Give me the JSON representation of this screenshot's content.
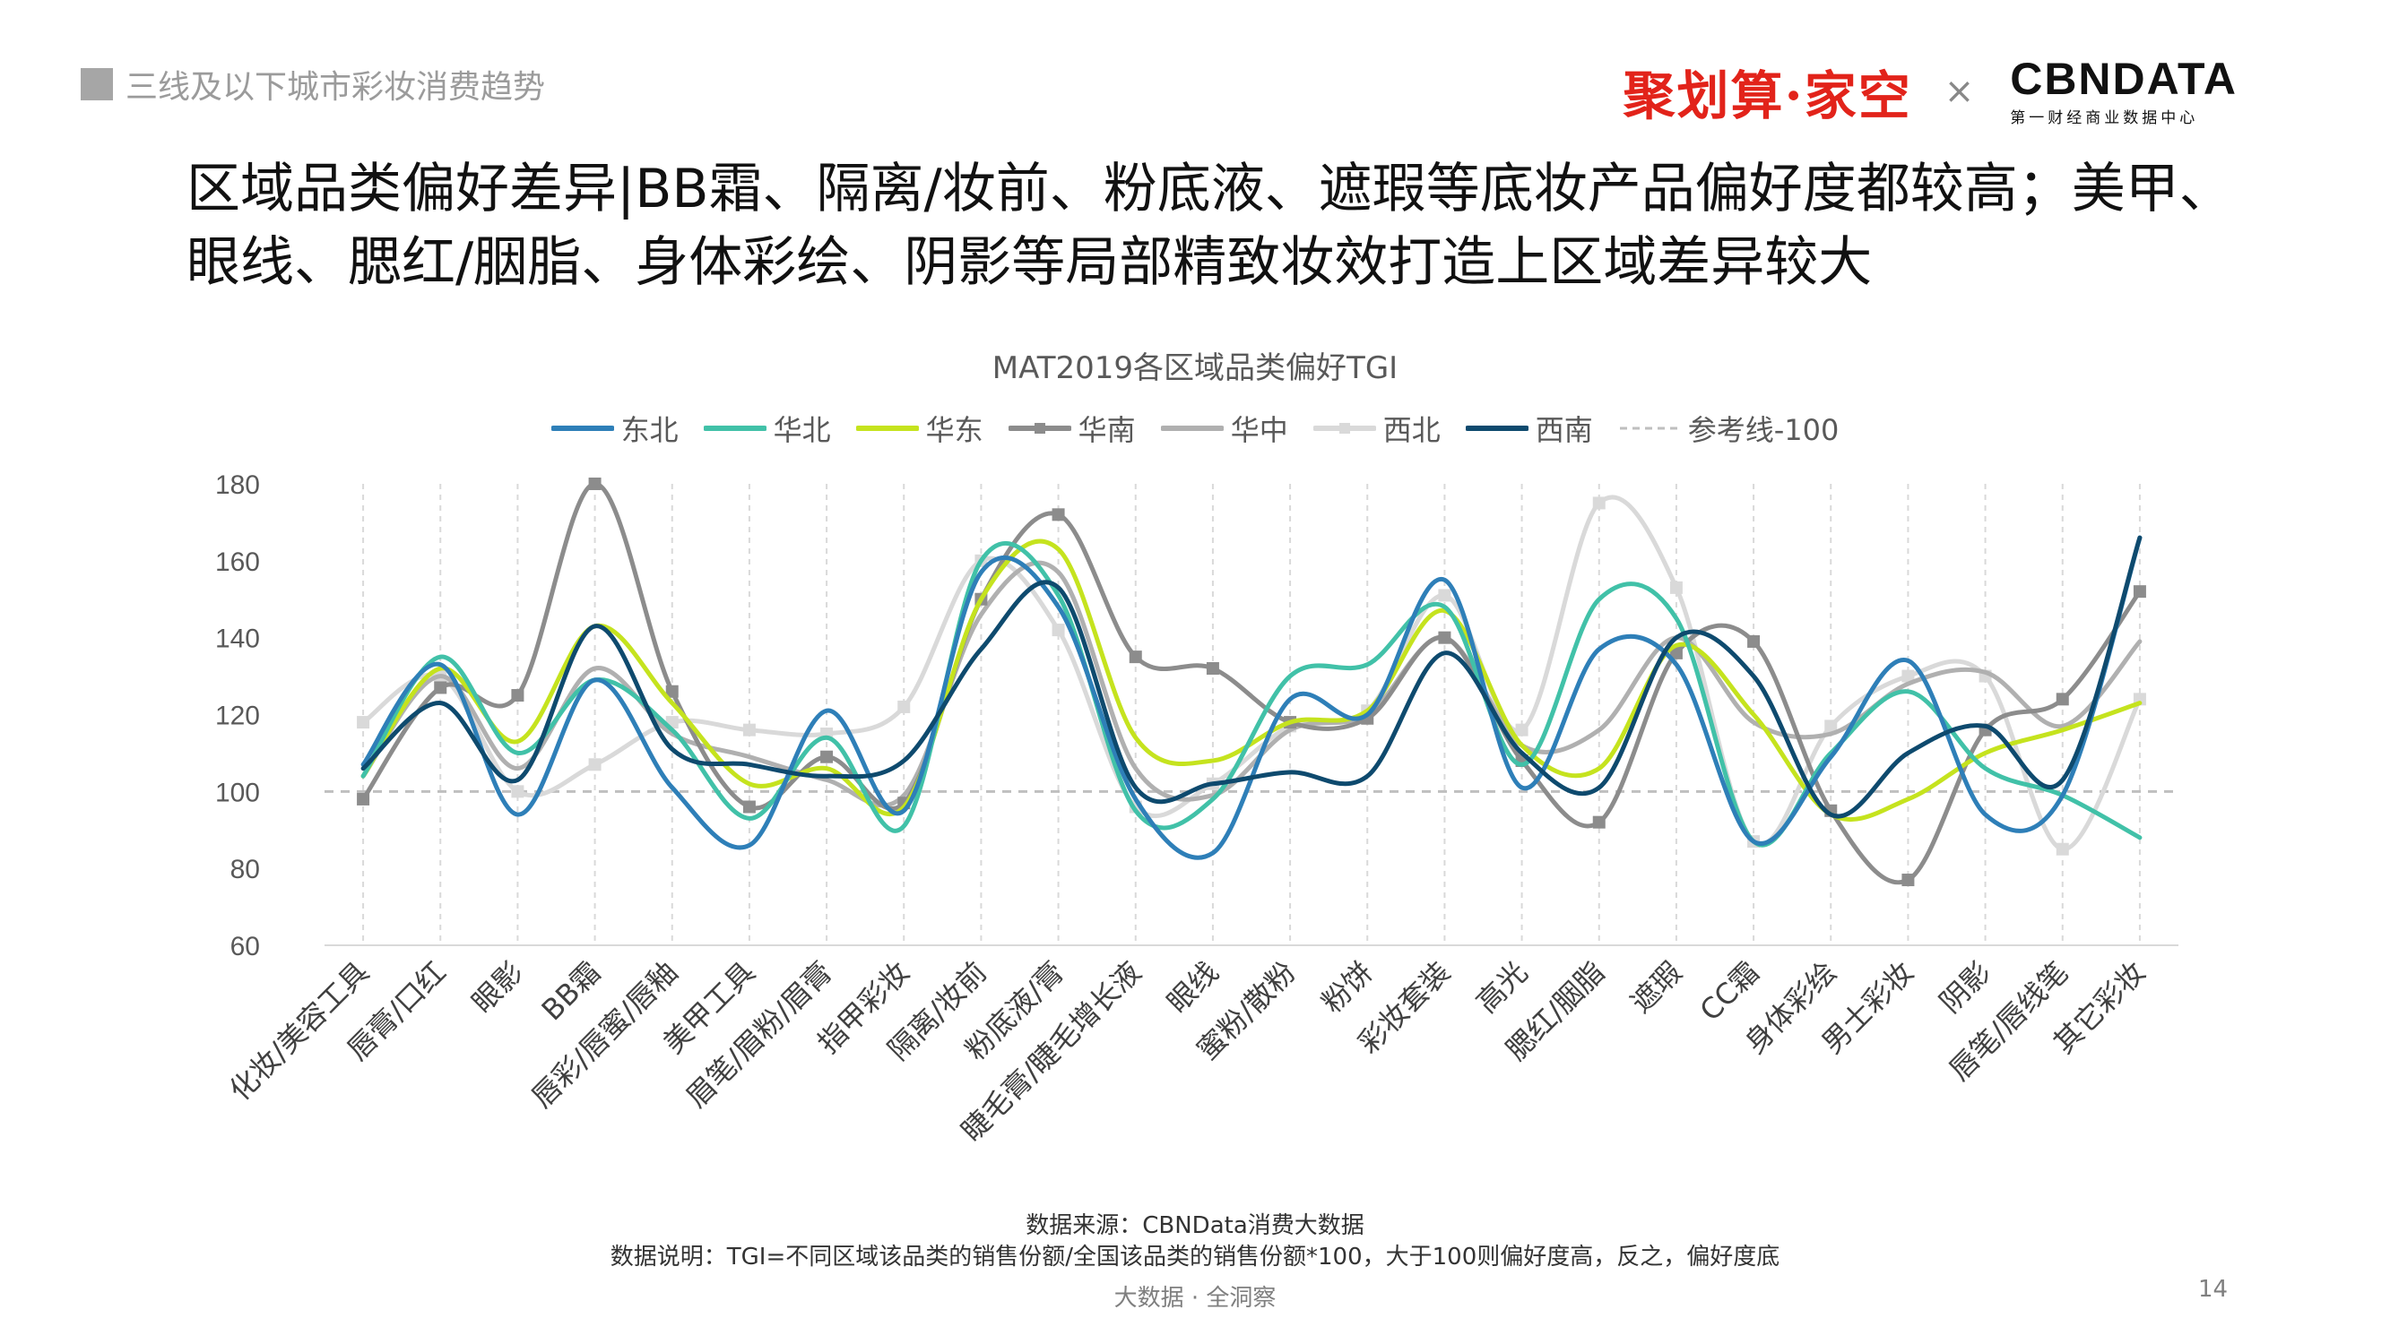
{
  "header": {
    "section": "三线及以下城市彩妆消费趋势"
  },
  "logos": {
    "jhs": "聚划算·家空",
    "cross": "×",
    "cbn_main": "CBNDATA",
    "cbn_sub": "第一财经商业数据中心"
  },
  "headline": "区域品类偏好差异|BB霜、隔离/妆前、粉底液、遮瑕等底妆产品偏好度都较高；美甲、眼线、腮红/胭脂、身体彩绘、阴影等局部精致妆效打造上区域差异较大",
  "footer": {
    "source": "数据来源：CBNData消费大数据",
    "note": "数据说明：TGI=不同区域该品类的销售份额/全国该品类的销售份额*100，大于100则偏好度高，反之，偏好度底",
    "center": "大数据 · 全洞察",
    "page": "14"
  },
  "chart_data": {
    "type": "line",
    "title": "MAT2019各区域品类偏好TGI",
    "categories": [
      "化妆/美容工具",
      "唇膏/口红",
      "眼影",
      "BB霜",
      "唇彩/唇蜜/唇釉",
      "美甲工具",
      "眉笔/眉粉/眉膏",
      "指甲彩妆",
      "隔离/妆前",
      "粉底液/膏",
      "睫毛膏/睫毛增长液",
      "眼线",
      "蜜粉/散粉",
      "粉饼",
      "彩妆套装",
      "高光",
      "腮红/胭脂",
      "遮瑕",
      "CC霜",
      "身体彩绘",
      "男士彩妆",
      "阴影",
      "唇笔/唇线笔",
      "其它彩妆"
    ],
    "ylim": [
      60,
      180
    ],
    "yticks": [
      60,
      80,
      100,
      120,
      140,
      160,
      180
    ],
    "reference": {
      "name": "参考线-100",
      "value": 100,
      "color": "#bfbfbf"
    },
    "series": [
      {
        "name": "东北",
        "color": "#2e7fb8",
        "marker": "none",
        "values": [
          107,
          133,
          94,
          129,
          101,
          86,
          121,
          95,
          157,
          148,
          98,
          84,
          124,
          120,
          155,
          101,
          137,
          133,
          87,
          109,
          134,
          94,
          99,
          166
        ]
      },
      {
        "name": "华北",
        "color": "#41c1a8",
        "marker": "none",
        "values": [
          104,
          135,
          110,
          129,
          116,
          93,
          114,
          91,
          160,
          151,
          95,
          98,
          130,
          133,
          148,
          107,
          150,
          145,
          87,
          110,
          126,
          106,
          99,
          88
        ]
      },
      {
        "name": "华东",
        "color": "#c5e31e",
        "marker": "none",
        "values": [
          104,
          132,
          113,
          143,
          123,
          102,
          106,
          96,
          150,
          163,
          114,
          108,
          118,
          121,
          147,
          112,
          106,
          138,
          120,
          94,
          98,
          110,
          116,
          123
        ]
      },
      {
        "name": "华南",
        "color": "#8c8c8c",
        "marker": "square",
        "values": [
          98,
          127,
          125,
          180,
          126,
          96,
          109,
          97,
          150,
          172,
          135,
          132,
          118,
          119,
          140,
          108,
          92,
          136,
          139,
          95,
          77,
          116,
          124,
          152
        ]
      },
      {
        "name": "华中",
        "color": "#b0b0b0",
        "marker": "none",
        "values": [
          104,
          130,
          106,
          132,
          115,
          109,
          103,
          99,
          146,
          157,
          106,
          99,
          116,
          120,
          140,
          112,
          116,
          140,
          118,
          115,
          128,
          131,
          117,
          139
        ]
      },
      {
        "name": "西北",
        "color": "#d9d9d9",
        "marker": "square",
        "values": [
          118,
          130,
          100,
          107,
          118,
          116,
          115,
          122,
          160,
          142,
          96,
          102,
          117,
          121,
          151,
          116,
          175,
          153,
          87,
          117,
          130,
          130,
          85,
          124
        ]
      },
      {
        "name": "西南",
        "color": "#0e4a6e",
        "marker": "none",
        "values": [
          106,
          123,
          103,
          143,
          111,
          107,
          104,
          108,
          137,
          153,
          101,
          102,
          105,
          104,
          136,
          110,
          101,
          140,
          130,
          94,
          110,
          117,
          103,
          166
        ]
      }
    ]
  }
}
